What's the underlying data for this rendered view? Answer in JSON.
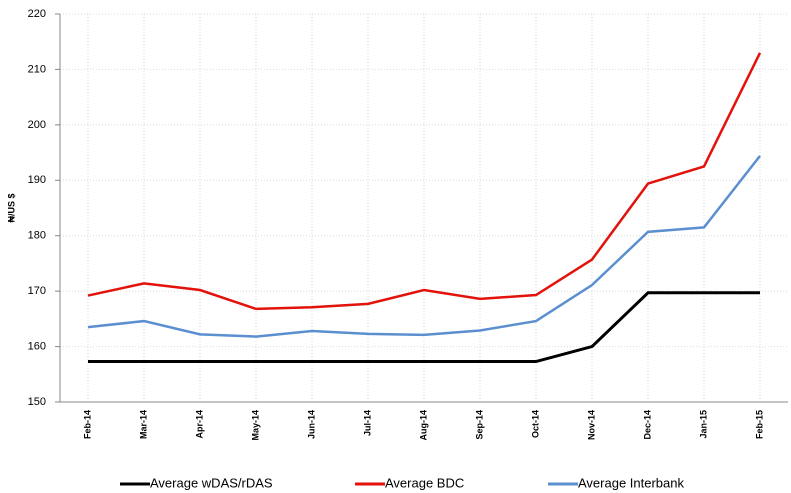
{
  "chart_data": {
    "type": "line",
    "y_label": "₦/US $",
    "categories": [
      "Feb-14",
      "Mar-14",
      "Apr-14",
      "May-14",
      "Jun-14",
      "Jul-14",
      "Aug-14",
      "Sep-14",
      "Oct-14",
      "Nov-14",
      "Dec-14",
      "Jan-15",
      "Feb-15"
    ],
    "series": [
      {
        "name": "Average wDAS/rDAS",
        "color": "#000000",
        "values": [
          157.3,
          157.3,
          157.3,
          157.3,
          157.3,
          157.3,
          157.3,
          157.3,
          157.3,
          160,
          169.7,
          169.7,
          169.7
        ]
      },
      {
        "name": "Average BDC",
        "color": "#e3120b",
        "values": [
          169.2,
          171.4,
          170.2,
          166.8,
          167.1,
          167.7,
          170.2,
          168.6,
          169.3,
          175.7,
          189.4,
          192.5,
          213
        ]
      },
      {
        "name": "Average Interbank",
        "color": "#5b8fd0",
        "values": [
          163.5,
          164.6,
          162.2,
          161.8,
          162.8,
          162.3,
          162.1,
          162.9,
          164.6,
          171.1,
          180.7,
          181.5,
          194.4
        ]
      }
    ],
    "ylim": [
      150,
      220
    ],
    "yticks": [
      150,
      160,
      170,
      180,
      190,
      200,
      210,
      220
    ],
    "grid": true,
    "legend": "bottom"
  }
}
